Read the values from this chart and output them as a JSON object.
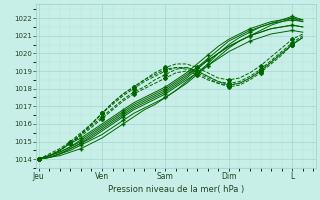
{
  "background_color": "#c8eee8",
  "grid_major_color": "#98d0c8",
  "grid_minor_color": "#b8e0d8",
  "line_color_dark": "#006600",
  "line_color_mid": "#208040",
  "xlabel": "Pression niveau de la mer( hPa )",
  "ylim": [
    1013.5,
    1022.8
  ],
  "yticks": [
    1014,
    1015,
    1016,
    1017,
    1018,
    1019,
    1020,
    1021,
    1022
  ],
  "xtick_labels": [
    "Jeu",
    "Ven",
    "Sam",
    "Dim",
    "L"
  ],
  "xtick_positions": [
    0,
    24,
    48,
    72,
    96
  ],
  "xlim": [
    -1,
    105
  ],
  "series_x": [
    0,
    4,
    8,
    12,
    16,
    20,
    24,
    28,
    32,
    36,
    40,
    44,
    48,
    52,
    56,
    60,
    64,
    68,
    72,
    76,
    80,
    84,
    88,
    92,
    96,
    100
  ],
  "solid_series": [
    [
      1014.0,
      1014.1,
      1014.3,
      1014.6,
      1014.9,
      1015.2,
      1015.6,
      1016.0,
      1016.4,
      1016.8,
      1017.1,
      1017.4,
      1017.7,
      1018.1,
      1018.5,
      1018.9,
      1019.3,
      1019.7,
      1020.1,
      1020.4,
      1020.7,
      1020.9,
      1021.1,
      1021.2,
      1021.3,
      1021.2
    ],
    [
      1014.0,
      1014.2,
      1014.5,
      1014.9,
      1015.2,
      1015.6,
      1016.0,
      1016.4,
      1016.8,
      1017.2,
      1017.5,
      1017.8,
      1018.1,
      1018.5,
      1018.9,
      1019.4,
      1019.9,
      1020.4,
      1020.8,
      1021.1,
      1021.4,
      1021.6,
      1021.8,
      1021.9,
      1022.0,
      1021.9
    ],
    [
      1014.0,
      1014.1,
      1014.3,
      1014.5,
      1014.8,
      1015.1,
      1015.4,
      1015.8,
      1016.2,
      1016.6,
      1016.9,
      1017.2,
      1017.5,
      1017.9,
      1018.3,
      1018.8,
      1019.3,
      1019.8,
      1020.3,
      1020.7,
      1021.0,
      1021.3,
      1021.6,
      1021.8,
      1022.0,
      1021.8
    ],
    [
      1014.0,
      1014.2,
      1014.4,
      1014.7,
      1015.0,
      1015.4,
      1015.8,
      1016.2,
      1016.6,
      1017.0,
      1017.3,
      1017.6,
      1017.9,
      1018.3,
      1018.7,
      1019.2,
      1019.7,
      1020.2,
      1020.7,
      1021.0,
      1021.3,
      1021.5,
      1021.7,
      1021.8,
      1021.9,
      1021.8
    ],
    [
      1014.0,
      1014.1,
      1014.2,
      1014.4,
      1014.6,
      1014.9,
      1015.2,
      1015.6,
      1016.0,
      1016.4,
      1016.8,
      1017.1,
      1017.5,
      1017.9,
      1018.4,
      1018.9,
      1019.4,
      1020.0,
      1020.5,
      1020.9,
      1021.2,
      1021.5,
      1021.7,
      1021.9,
      1022.1,
      1021.9
    ],
    [
      1014.0,
      1014.1,
      1014.3,
      1014.6,
      1014.9,
      1015.3,
      1015.7,
      1016.1,
      1016.5,
      1016.9,
      1017.2,
      1017.5,
      1017.8,
      1018.2,
      1018.6,
      1019.1,
      1019.6,
      1020.0,
      1020.4,
      1020.7,
      1021.0,
      1021.2,
      1021.4,
      1021.5,
      1021.6,
      1021.5
    ],
    [
      1014.0,
      1014.2,
      1014.4,
      1014.7,
      1015.1,
      1015.5,
      1015.9,
      1016.3,
      1016.7,
      1017.1,
      1017.4,
      1017.7,
      1018.0,
      1018.4,
      1018.8,
      1019.2,
      1019.6,
      1020.0,
      1020.4,
      1020.7,
      1021.0,
      1021.2,
      1021.4,
      1021.5,
      1021.6,
      1021.5
    ]
  ],
  "dashed_series": [
    [
      1014.0,
      1014.2,
      1014.5,
      1014.9,
      1015.3,
      1015.8,
      1016.3,
      1016.8,
      1017.3,
      1017.7,
      1018.0,
      1018.3,
      1018.6,
      1018.9,
      1019.0,
      1018.8,
      1018.5,
      1018.3,
      1018.2,
      1018.3,
      1018.6,
      1019.0,
      1019.5,
      1020.0,
      1020.5,
      1020.9
    ],
    [
      1014.0,
      1014.2,
      1014.5,
      1014.9,
      1015.4,
      1015.9,
      1016.4,
      1016.9,
      1017.4,
      1017.8,
      1018.1,
      1018.5,
      1018.8,
      1019.1,
      1019.2,
      1019.0,
      1018.7,
      1018.4,
      1018.2,
      1018.3,
      1018.6,
      1019.0,
      1019.5,
      1020.0,
      1020.5,
      1020.9
    ],
    [
      1014.0,
      1014.2,
      1014.5,
      1014.9,
      1015.4,
      1016.0,
      1016.6,
      1017.1,
      1017.6,
      1018.0,
      1018.4,
      1018.7,
      1019.0,
      1019.2,
      1019.2,
      1019.0,
      1018.7,
      1018.4,
      1018.3,
      1018.4,
      1018.7,
      1019.1,
      1019.6,
      1020.1,
      1020.6,
      1021.0
    ],
    [
      1014.0,
      1014.3,
      1014.6,
      1015.0,
      1015.5,
      1016.0,
      1016.6,
      1017.2,
      1017.7,
      1018.1,
      1018.5,
      1018.9,
      1019.2,
      1019.4,
      1019.4,
      1019.2,
      1018.9,
      1018.6,
      1018.5,
      1018.6,
      1018.9,
      1019.3,
      1019.8,
      1020.3,
      1020.8,
      1021.1
    ],
    [
      1014.0,
      1014.2,
      1014.5,
      1014.9,
      1015.4,
      1016.0,
      1016.6,
      1017.2,
      1017.7,
      1018.1,
      1018.5,
      1018.8,
      1019.1,
      1019.2,
      1019.1,
      1018.9,
      1018.6,
      1018.3,
      1018.1,
      1018.2,
      1018.5,
      1018.9,
      1019.4,
      1019.9,
      1020.5,
      1020.9
    ]
  ]
}
